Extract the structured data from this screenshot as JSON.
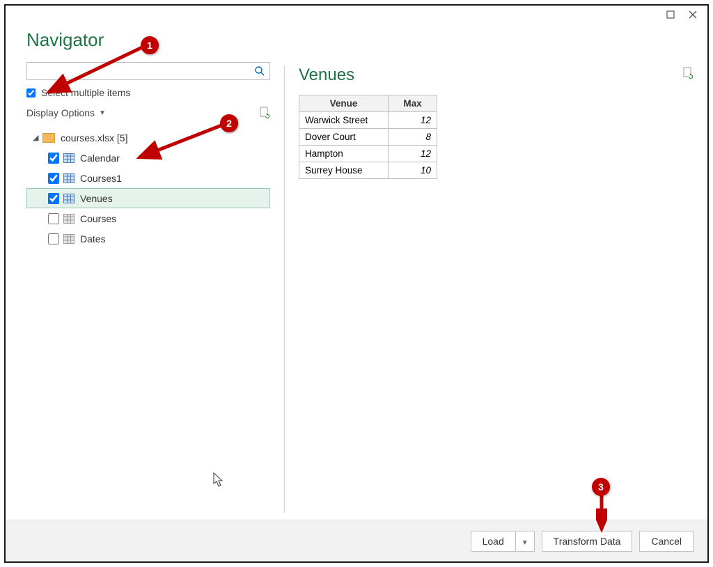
{
  "colors": {
    "accent": "#217346",
    "border": "#c0c0c0",
    "selected_bg": "#e6f3ec",
    "selected_border": "#9cc7b1",
    "callout": "#c00000",
    "folder": "#f0b95a",
    "footer_bg": "#f2f2f2"
  },
  "titlebar": {},
  "navigator": {
    "title": "Navigator",
    "search_placeholder": "",
    "select_multiple_label": "Select multiple items",
    "select_multiple_checked": true,
    "display_options_label": "Display Options",
    "root": {
      "label": "courses.xlsx [5]",
      "expanded": true
    },
    "items": [
      {
        "label": "Calendar",
        "checked": true,
        "icon": "table-blue",
        "selected": false
      },
      {
        "label": "Courses1",
        "checked": true,
        "icon": "table-blue",
        "selected": false
      },
      {
        "label": "Venues",
        "checked": true,
        "icon": "table-blue",
        "selected": true
      },
      {
        "label": "Courses",
        "checked": false,
        "icon": "table-gray",
        "selected": false
      },
      {
        "label": "Dates",
        "checked": false,
        "icon": "table-gray",
        "selected": false
      }
    ]
  },
  "preview": {
    "title": "Venues",
    "columns": [
      "Venue",
      "Max"
    ],
    "rows": [
      [
        "Warwick Street",
        "12"
      ],
      [
        "Dover Court",
        "8"
      ],
      [
        "Hampton",
        "12"
      ],
      [
        "Surrey House",
        "10"
      ]
    ]
  },
  "footer": {
    "load_label": "Load",
    "transform_label": "Transform Data",
    "cancel_label": "Cancel"
  },
  "annotations": {
    "c1": "1",
    "c2": "2",
    "c3": "3"
  }
}
